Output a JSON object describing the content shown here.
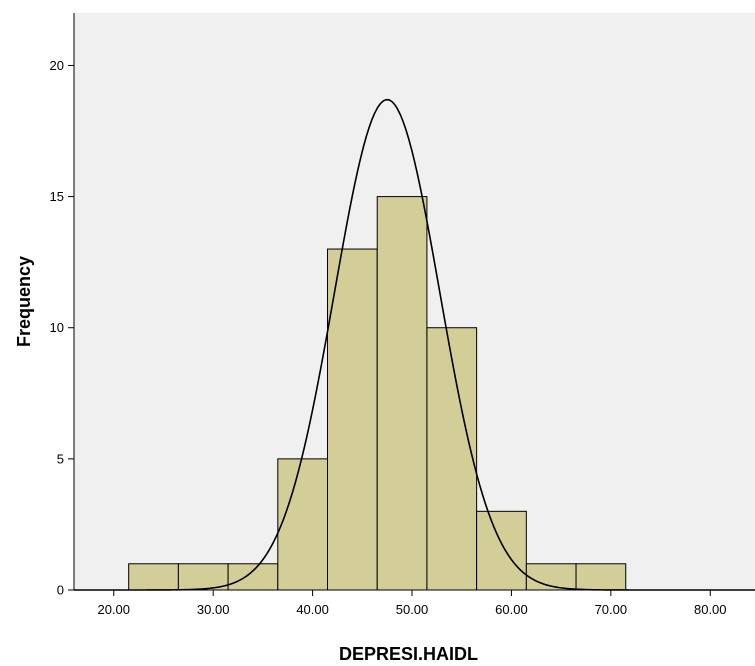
{
  "chart_data": {
    "type": "bar",
    "subtype": "histogram",
    "xlabel": "DEPRESI.HAIDL",
    "ylabel": "Frequency",
    "xlim": [
      16.0,
      84.5
    ],
    "ylim": [
      0,
      22
    ],
    "x_ticks": [
      20,
      30,
      40,
      50,
      60,
      70,
      80
    ],
    "x_tick_labels": [
      "20.00",
      "30.00",
      "40.00",
      "50.00",
      "60.00",
      "70.00",
      "80.00"
    ],
    "y_ticks": [
      0,
      5,
      10,
      15,
      20
    ],
    "y_tick_labels": [
      "0",
      "5",
      "10",
      "15",
      "20"
    ],
    "bins": [
      {
        "from": 21.5,
        "to": 26.5,
        "count": 1
      },
      {
        "from": 26.5,
        "to": 31.5,
        "count": 1
      },
      {
        "from": 31.5,
        "to": 36.5,
        "count": 1
      },
      {
        "from": 36.5,
        "to": 41.5,
        "count": 5
      },
      {
        "from": 41.5,
        "to": 46.5,
        "count": 13
      },
      {
        "from": 46.5,
        "to": 51.5,
        "count": 15
      },
      {
        "from": 51.5,
        "to": 56.5,
        "count": 10
      },
      {
        "from": 56.5,
        "to": 61.5,
        "count": 3
      },
      {
        "from": 61.5,
        "to": 66.5,
        "count": 1
      },
      {
        "from": 66.5,
        "to": 71.5,
        "count": 1
      }
    ],
    "normal_curve": {
      "mean": 47.5,
      "std_dev": 5.3,
      "peak": 18.7
    },
    "grid": false,
    "colors": {
      "plot_background": "#F0F0F0",
      "bar_fill": "#D3CE97",
      "bar_stroke": "#000000",
      "curve": "#000000",
      "page_background": "#FFFFFF"
    }
  }
}
